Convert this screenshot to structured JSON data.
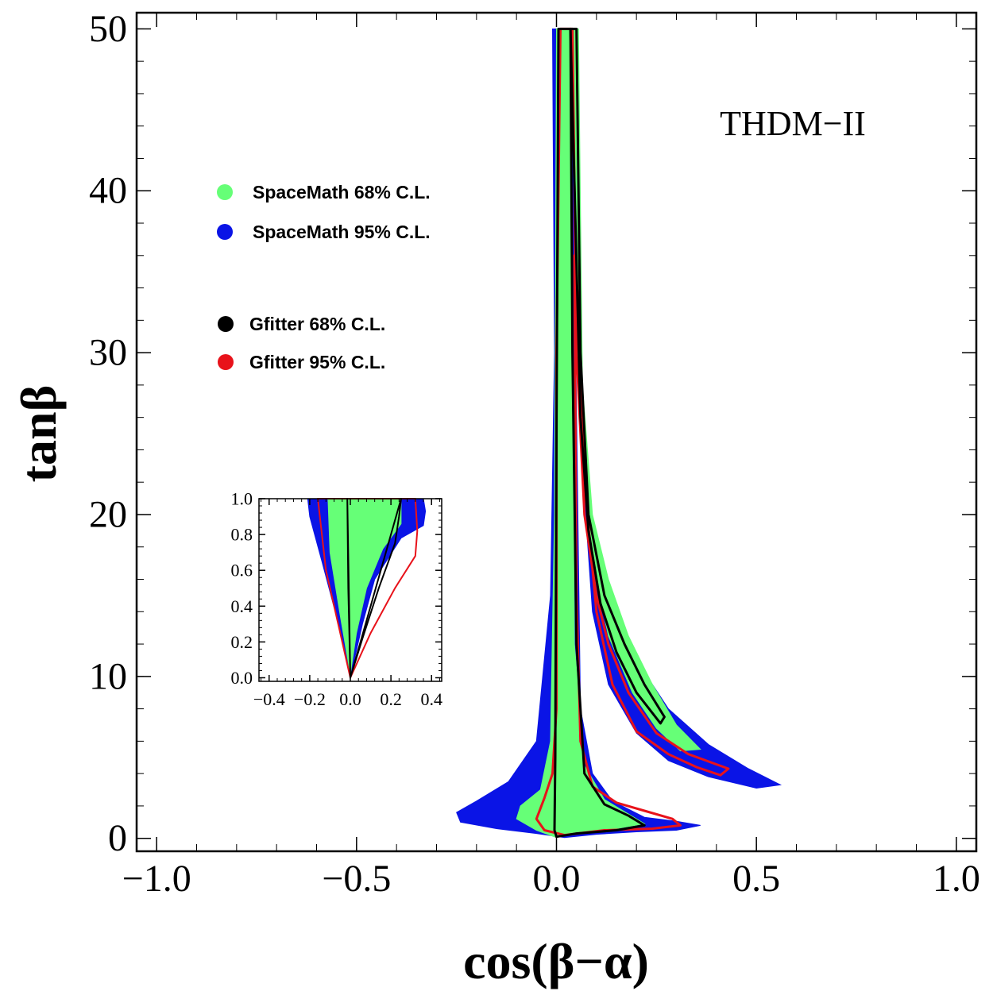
{
  "chart_data": {
    "type": "contour",
    "xlabel": "cos(β−α)",
    "ylabel": "tanβ",
    "xlim": [
      -1.05,
      1.05
    ],
    "ylim": [
      -0.8,
      51
    ],
    "x_ticks": [
      -1.0,
      -0.5,
      0.0,
      0.5,
      1.0
    ],
    "x_tick_labels": [
      "−1.0",
      "−0.5",
      "0.0",
      "0.5",
      "1.0"
    ],
    "y_ticks": [
      0,
      10,
      20,
      30,
      40,
      50
    ],
    "y_tick_labels": [
      "0",
      "10",
      "20",
      "30",
      "40",
      "50"
    ],
    "annotation": "THDM−II",
    "legend": [
      {
        "label": "SpaceMath 68% C.L.",
        "color": "#66ff77",
        "marker": "filled-dot"
      },
      {
        "label": "SpaceMath 95% C.L.",
        "color": "#0a14e6",
        "marker": "filled-dot"
      },
      {
        "label": "Gfitter 68% C.L.",
        "color": "#000000",
        "marker": "filled-dot"
      },
      {
        "label": "Gfitter 95% C.L.",
        "color": "#e8121a",
        "marker": "filled-dot"
      }
    ],
    "series": [
      {
        "name": "SpaceMath 95% C.L.",
        "style": "filled",
        "color": "#0a14e6",
        "regions": [
          [
            [
              -0.01,
              50
            ],
            [
              0.05,
              50
            ],
            [
              0.06,
              25
            ],
            [
              0.09,
              18
            ],
            [
              0.13,
              15
            ],
            [
              0.2,
              11
            ],
            [
              0.28,
              8
            ],
            [
              0.38,
              5.8
            ],
            [
              0.48,
              4.3
            ],
            [
              0.56,
              3.3
            ],
            [
              0.5,
              3.1
            ],
            [
              0.38,
              3.8
            ],
            [
              0.28,
              4.8
            ],
            [
              0.2,
              6.5
            ],
            [
              0.13,
              9.5
            ],
            [
              0.09,
              14
            ],
            [
              0.07,
              21
            ],
            [
              0.055,
              30
            ],
            [
              0.045,
              36
            ],
            [
              0.06,
              8
            ],
            [
              0.09,
              4
            ],
            [
              0.14,
              2.3
            ],
            [
              0.22,
              1.3
            ],
            [
              0.3,
              1.05
            ],
            [
              0.36,
              0.8
            ],
            [
              0.3,
              0.5
            ],
            [
              0.2,
              0.4
            ],
            [
              0.1,
              0.25
            ],
            [
              0.02,
              0.05
            ],
            [
              -0.05,
              0.3
            ],
            [
              -0.15,
              0.6
            ],
            [
              -0.24,
              1.0
            ],
            [
              -0.25,
              1.6
            ],
            [
              -0.2,
              2.3
            ],
            [
              -0.12,
              3.5
            ],
            [
              -0.05,
              6
            ],
            [
              -0.015,
              15
            ],
            [
              -0.005,
              30
            ]
          ]
        ]
      },
      {
        "name": "SpaceMath 68% C.L.",
        "style": "filled",
        "color": "#66ff77",
        "regions": [
          [
            [
              0.0,
              50
            ],
            [
              0.035,
              50
            ],
            [
              0.04,
              30
            ],
            [
              0.045,
              12
            ],
            [
              0.07,
              4.5
            ],
            [
              0.12,
              2.4
            ],
            [
              0.18,
              1.5
            ],
            [
              0.22,
              0.9
            ],
            [
              0.15,
              0.6
            ],
            [
              0.05,
              0.35
            ],
            [
              0.0,
              0.05
            ],
            [
              -0.05,
              0.5
            ],
            [
              -0.1,
              1.2
            ],
            [
              -0.09,
              2.0
            ],
            [
              -0.04,
              3.0
            ],
            [
              -0.015,
              6
            ],
            [
              -0.005,
              20
            ]
          ],
          [
            [
              0.04,
              50
            ],
            [
              0.055,
              50
            ],
            [
              0.065,
              28
            ],
            [
              0.09,
              20
            ],
            [
              0.13,
              16
            ],
            [
              0.18,
              12.5
            ],
            [
              0.24,
              9.5
            ],
            [
              0.3,
              7
            ],
            [
              0.36,
              5.5
            ],
            [
              0.31,
              5.4
            ],
            [
              0.25,
              6.8
            ],
            [
              0.19,
              9
            ],
            [
              0.13,
              12.5
            ],
            [
              0.09,
              17
            ],
            [
              0.065,
              24
            ],
            [
              0.05,
              32
            ]
          ]
        ]
      },
      {
        "name": "Gfitter 95% C.L.",
        "style": "contour",
        "color": "#e8121a",
        "regions": [
          [
            [
              0.01,
              50
            ],
            [
              0.04,
              50
            ],
            [
              0.05,
              30
            ],
            [
              0.07,
              20
            ],
            [
              0.1,
              15
            ],
            [
              0.13,
              12
            ],
            [
              0.18,
              9
            ],
            [
              0.25,
              6.5
            ],
            [
              0.33,
              5.2
            ],
            [
              0.43,
              4.3
            ],
            [
              0.41,
              3.9
            ],
            [
              0.35,
              4.4
            ],
            [
              0.28,
              5.2
            ],
            [
              0.2,
              6.6
            ],
            [
              0.14,
              9.5
            ],
            [
              0.1,
              14
            ],
            [
              0.07,
              22
            ],
            [
              0.055,
              33
            ],
            [
              0.045,
              36
            ],
            [
              0.05,
              15
            ],
            [
              0.06,
              6
            ],
            [
              0.09,
              3.2
            ],
            [
              0.15,
              2.2
            ],
            [
              0.22,
              1.7
            ],
            [
              0.29,
              1.2
            ],
            [
              0.31,
              0.8
            ],
            [
              0.24,
              0.6
            ],
            [
              0.12,
              0.5
            ],
            [
              0.02,
              0.2
            ],
            [
              -0.03,
              0.5
            ],
            [
              -0.05,
              1.2
            ],
            [
              -0.03,
              2.5
            ],
            [
              -0.01,
              4
            ],
            [
              0.0,
              8
            ],
            [
              0.0,
              30
            ]
          ]
        ]
      },
      {
        "name": "Gfitter 68% C.L.",
        "style": "contour",
        "color": "#000000",
        "regions": [
          [
            [
              0.005,
              50
            ],
            [
              0.035,
              50
            ],
            [
              0.04,
              30
            ],
            [
              0.05,
              12
            ],
            [
              0.07,
              4
            ],
            [
              0.12,
              2.1
            ],
            [
              0.18,
              1.4
            ],
            [
              0.22,
              0.8
            ],
            [
              0.15,
              0.5
            ],
            [
              0.05,
              0.3
            ],
            [
              0.0,
              0.1
            ],
            [
              -0.005,
              0.5
            ],
            [
              -0.003,
              5
            ],
            [
              0.0,
              25
            ]
          ],
          [
            [
              0.035,
              50
            ],
            [
              0.05,
              50
            ],
            [
              0.06,
              30
            ],
            [
              0.08,
              20
            ],
            [
              0.12,
              15
            ],
            [
              0.17,
              12
            ],
            [
              0.22,
              9.5
            ],
            [
              0.27,
              7.5
            ],
            [
              0.26,
              7.1
            ],
            [
              0.2,
              9
            ],
            [
              0.15,
              11.5
            ],
            [
              0.11,
              14.5
            ],
            [
              0.08,
              19
            ],
            [
              0.06,
              26
            ]
          ]
        ]
      }
    ],
    "inset": {
      "type": "contour",
      "xlim": [
        -0.45,
        0.45
      ],
      "ylim": [
        -0.02,
        1.0
      ],
      "x_ticks": [
        -0.4,
        -0.2,
        0.0,
        0.2,
        0.4
      ],
      "x_tick_labels": [
        "−0.4",
        "−0.2",
        "0.0",
        "0.2",
        "0.4"
      ],
      "y_ticks": [
        0.0,
        0.2,
        0.4,
        0.6,
        0.8,
        1.0
      ],
      "y_tick_labels": [
        "0.0",
        "0.2",
        "0.4",
        "0.6",
        "0.8",
        "1.0"
      ],
      "series": [
        {
          "name": "SpaceMath 95% C.L.",
          "style": "filled",
          "color": "#0a14e6",
          "regions": [
            [
              [
                0.0,
                0.0
              ],
              [
                -0.07,
                0.35
              ],
              [
                -0.14,
                0.65
              ],
              [
                -0.2,
                0.9
              ],
              [
                -0.21,
                1.0
              ],
              [
                0.36,
                1.0
              ],
              [
                0.37,
                0.93
              ],
              [
                0.36,
                0.85
              ],
              [
                0.25,
                0.78
              ],
              [
                0.12,
                0.55
              ],
              [
                0.06,
                0.3
              ],
              [
                0.02,
                0.1
              ]
            ]
          ]
        },
        {
          "name": "SpaceMath 68% C.L.",
          "style": "filled",
          "color": "#66ff77",
          "regions": [
            [
              [
                0.0,
                0.02
              ],
              [
                -0.05,
                0.35
              ],
              [
                -0.1,
                0.7
              ],
              [
                -0.11,
                1.0
              ],
              [
                0.25,
                1.0
              ],
              [
                0.25,
                0.86
              ],
              [
                0.16,
                0.72
              ],
              [
                0.08,
                0.5
              ],
              [
                0.03,
                0.25
              ]
            ]
          ]
        },
        {
          "name": "Gfitter 95% C.L.",
          "style": "contour",
          "color": "#e8121a",
          "regions": [
            [
              [
                0.32,
                1.0
              ],
              [
                0.33,
                0.82
              ],
              [
                0.32,
                0.68
              ],
              [
                0.22,
                0.5
              ],
              [
                0.1,
                0.25
              ],
              [
                0.0,
                0.0
              ],
              [
                -0.06,
                0.3
              ],
              [
                -0.12,
                0.6
              ],
              [
                -0.14,
                0.8
              ],
              [
                -0.16,
                1.0
              ]
            ]
          ]
        },
        {
          "name": "Gfitter 68% C.L.",
          "style": "contour",
          "color": "#000000",
          "regions": [
            [
              [
                0.0,
                0.0
              ],
              [
                -0.01,
                0.5
              ],
              [
                -0.015,
                1.0
              ]
            ],
            [
              [
                0.0,
                0.0
              ],
              [
                0.06,
                0.22
              ],
              [
                0.14,
                0.5
              ],
              [
                0.22,
                0.75
              ],
              [
                0.24,
                0.9
              ],
              [
                0.25,
                1.0
              ]
            ]
          ]
        }
      ]
    }
  }
}
